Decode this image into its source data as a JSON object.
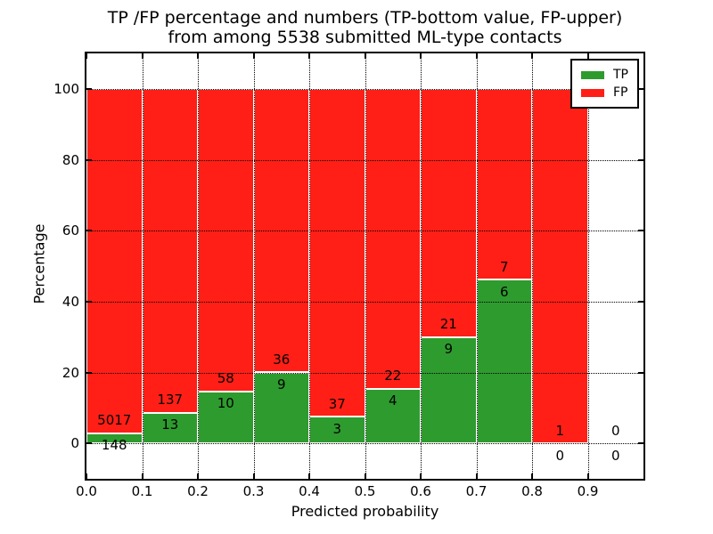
{
  "title": {
    "line1": "TP /FP percentage and numbers (TP-bottom value, FP-upper)",
    "line2": "from among 5538 submitted ML-type contacts"
  },
  "axes": {
    "xlabel": "Predicted probability",
    "ylabel": "Percentage"
  },
  "chart_data": {
    "type": "bar",
    "stacked": true,
    "title": "TP /FP percentage and numbers (TP-bottom value, FP-upper) from among 5538 submitted ML-type contacts",
    "xlabel": "Predicted probability",
    "ylabel": "Percentage",
    "total_contacts": 5538,
    "xlim": [
      0.0,
      1.0
    ],
    "ylim": [
      -10,
      110
    ],
    "grid": true,
    "legend_position": "upper right",
    "x_tick_labels": [
      "0.0",
      "0.1",
      "0.2",
      "0.3",
      "0.4",
      "0.5",
      "0.6",
      "0.7",
      "0.8",
      "0.9"
    ],
    "y_ticks": [
      0,
      20,
      40,
      60,
      80,
      100
    ],
    "bin_edges": [
      0.0,
      0.1,
      0.2,
      0.3,
      0.4,
      0.5,
      0.6,
      0.7,
      0.8,
      0.9,
      1.0
    ],
    "bins": [
      {
        "range": "0.0-0.1",
        "tp": 148,
        "fp": 5017,
        "tp_pct": 2.87,
        "has_bar": true
      },
      {
        "range": "0.1-0.2",
        "tp": 13,
        "fp": 137,
        "tp_pct": 8.67,
        "has_bar": true
      },
      {
        "range": "0.2-0.3",
        "tp": 10,
        "fp": 58,
        "tp_pct": 14.71,
        "has_bar": true
      },
      {
        "range": "0.3-0.4",
        "tp": 9,
        "fp": 36,
        "tp_pct": 20.0,
        "has_bar": true
      },
      {
        "range": "0.4-0.5",
        "tp": 3,
        "fp": 37,
        "tp_pct": 7.5,
        "has_bar": true
      },
      {
        "range": "0.5-0.6",
        "tp": 4,
        "fp": 22,
        "tp_pct": 15.38,
        "has_bar": true
      },
      {
        "range": "0.6-0.7",
        "tp": 9,
        "fp": 21,
        "tp_pct": 30.0,
        "has_bar": true
      },
      {
        "range": "0.7-0.8",
        "tp": 6,
        "fp": 7,
        "tp_pct": 46.15,
        "has_bar": true
      },
      {
        "range": "0.8-0.9",
        "tp": 0,
        "fp": 1,
        "tp_pct": 0.0,
        "has_bar": true
      },
      {
        "range": "0.9-1.0",
        "tp": 0,
        "fp": 0,
        "tp_pct": 0.0,
        "has_bar": false
      }
    ],
    "series": [
      {
        "name": "TP",
        "color": "#2e9b2e",
        "counts": [
          148,
          13,
          10,
          9,
          3,
          4,
          9,
          6,
          0,
          0
        ]
      },
      {
        "name": "FP",
        "color": "#ff1f16",
        "counts": [
          5017,
          137,
          58,
          36,
          37,
          22,
          21,
          7,
          1,
          0
        ]
      }
    ],
    "legend": [
      {
        "label": "TP",
        "color": "#2e9b2e"
      },
      {
        "label": "FP",
        "color": "#ff1f16"
      }
    ]
  }
}
